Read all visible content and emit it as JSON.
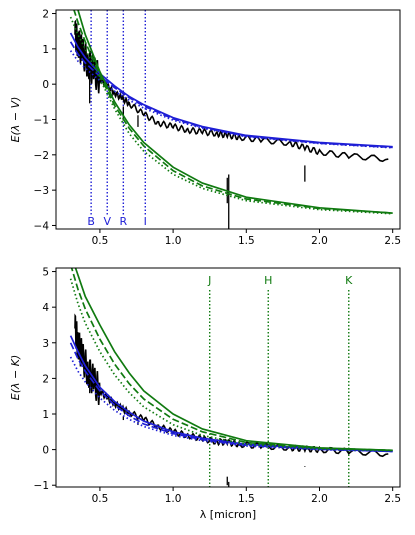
{
  "chart_data": [
    {
      "type": "line",
      "ylabel": "E(λ − V)",
      "xlabel": "",
      "xlim": [
        0.2,
        2.55
      ],
      "ylim": [
        -4.1,
        2.1
      ],
      "xticks": [
        0.5,
        1.0,
        1.5,
        2.0,
        2.5
      ],
      "xtick_labels": [
        "0.5",
        "1.0",
        "1.5",
        "2.0",
        "2.5"
      ],
      "yticks": [
        -4,
        -3,
        -2,
        -1,
        0,
        1,
        2
      ],
      "ytick_labels": [
        "−4",
        "−3",
        "−2",
        "−1",
        "0",
        "1",
        "2"
      ],
      "band_lines": [
        {
          "label": "B",
          "x": 0.44,
          "color": "#1f1fd6"
        },
        {
          "label": "V",
          "x": 0.55,
          "color": "#1f1fd6"
        },
        {
          "label": "R",
          "x": 0.66,
          "color": "#1f1fd6"
        },
        {
          "label": "I",
          "x": 0.81,
          "color": "#1f1fd6"
        }
      ],
      "series": [
        {
          "style": "black-spectrum",
          "color": "#000000",
          "x": [
            0.33,
            0.35,
            0.38,
            0.42,
            0.46,
            0.5,
            0.55,
            0.6,
            0.65,
            0.7,
            0.8,
            0.9,
            1.0,
            1.1,
            1.2,
            1.3,
            1.37,
            1.45,
            1.6,
            1.8,
            1.9,
            2.0,
            2.2,
            2.47
          ],
          "y": [
            1.4,
            1.2,
            0.9,
            0.6,
            0.35,
            0.15,
            -0.05,
            -0.25,
            -0.4,
            -0.55,
            -0.85,
            -1.1,
            -1.2,
            -1.3,
            -1.35,
            -1.4,
            -1.45,
            -1.5,
            -1.58,
            -1.67,
            -1.8,
            -1.92,
            -2.03,
            -2.12
          ]
        },
        {
          "style": "solid",
          "color": "#1f1fd6",
          "x": [
            0.3,
            0.35,
            0.4,
            0.5,
            0.6,
            0.7,
            0.8,
            1.0,
            1.2,
            1.5,
            2.0,
            2.5
          ],
          "y": [
            1.45,
            1.05,
            0.75,
            0.3,
            -0.05,
            -0.35,
            -0.58,
            -0.95,
            -1.2,
            -1.45,
            -1.65,
            -1.77
          ]
        },
        {
          "style": "dashed",
          "color": "#1f1fd6",
          "x": [
            0.3,
            0.35,
            0.4,
            0.5,
            0.6,
            0.7,
            0.8,
            1.0,
            1.2,
            1.5,
            2.0,
            2.5
          ],
          "y": [
            1.2,
            0.85,
            0.6,
            0.22,
            -0.1,
            -0.38,
            -0.62,
            -0.98,
            -1.22,
            -1.47,
            -1.67,
            -1.79
          ]
        },
        {
          "style": "dotted",
          "color": "#1f1fd6",
          "x": [
            0.3,
            0.35,
            0.4,
            0.5,
            0.6,
            0.7,
            0.8,
            1.0,
            1.2,
            1.5,
            2.0,
            2.5
          ],
          "y": [
            0.95,
            0.65,
            0.45,
            0.1,
            -0.2,
            -0.45,
            -0.68,
            -1.02,
            -1.25,
            -1.49,
            -1.68,
            -1.8
          ]
        },
        {
          "style": "solid",
          "color": "#107a10",
          "x": [
            0.3,
            0.35,
            0.4,
            0.5,
            0.6,
            0.7,
            0.8,
            1.0,
            1.2,
            1.5,
            2.0,
            2.5
          ],
          "y": [
            2.9,
            2.1,
            1.4,
            0.35,
            -0.5,
            -1.15,
            -1.65,
            -2.35,
            -2.8,
            -3.2,
            -3.5,
            -3.65
          ]
        },
        {
          "style": "dashed",
          "color": "#107a10",
          "x": [
            0.3,
            0.35,
            0.4,
            0.5,
            0.6,
            0.7,
            0.8,
            1.0,
            1.2,
            1.5,
            2.0,
            2.5
          ],
          "y": [
            2.4,
            1.75,
            1.2,
            0.25,
            -0.6,
            -1.25,
            -1.75,
            -2.45,
            -2.88,
            -3.25,
            -3.52,
            -3.65
          ]
        },
        {
          "style": "dotted",
          "color": "#107a10",
          "x": [
            0.3,
            0.35,
            0.4,
            0.5,
            0.6,
            0.7,
            0.8,
            1.0,
            1.2,
            1.5,
            2.0,
            2.5
          ],
          "y": [
            1.9,
            1.4,
            1.0,
            0.15,
            -0.7,
            -1.4,
            -1.9,
            -2.55,
            -2.95,
            -3.3,
            -3.55,
            -3.67
          ]
        }
      ]
    },
    {
      "type": "line",
      "ylabel": "E(λ − K)",
      "xlabel": "λ [micron]",
      "xlim": [
        0.2,
        2.55
      ],
      "ylim": [
        -1.05,
        5.1
      ],
      "xticks": [
        0.5,
        1.0,
        1.5,
        2.0,
        2.5
      ],
      "xtick_labels": [
        "0.5",
        "1.0",
        "1.5",
        "2.0",
        "2.5"
      ],
      "yticks": [
        -1,
        0,
        1,
        2,
        3,
        4,
        5
      ],
      "ytick_labels": [
        "−1",
        "0",
        "1",
        "2",
        "3",
        "4",
        "5"
      ],
      "band_lines": [
        {
          "label": "J",
          "x": 1.25,
          "color": "#107a10"
        },
        {
          "label": "H",
          "x": 1.65,
          "color": "#107a10"
        },
        {
          "label": "K",
          "x": 2.2,
          "color": "#107a10"
        }
      ],
      "series": [
        {
          "style": "black-spectrum",
          "color": "#000000",
          "x": [
            0.33,
            0.35,
            0.38,
            0.42,
            0.46,
            0.5,
            0.55,
            0.6,
            0.65,
            0.7,
            0.8,
            0.9,
            1.0,
            1.1,
            1.2,
            1.3,
            1.37,
            1.45,
            1.6,
            1.8,
            1.9,
            2.0,
            2.2,
            2.47
          ],
          "y": [
            3.4,
            3.0,
            2.6,
            2.2,
            1.9,
            1.65,
            1.45,
            1.3,
            1.15,
            1.05,
            0.85,
            0.65,
            0.5,
            0.4,
            0.3,
            0.22,
            0.2,
            0.15,
            0.1,
            0.05,
            0.02,
            0.0,
            -0.05,
            -0.12
          ]
        },
        {
          "style": "solid",
          "color": "#1f1fd6",
          "x": [
            0.3,
            0.35,
            0.4,
            0.5,
            0.6,
            0.7,
            0.8,
            1.0,
            1.2,
            1.5,
            2.0,
            2.5
          ],
          "y": [
            3.2,
            2.75,
            2.35,
            1.75,
            1.35,
            1.05,
            0.8,
            0.5,
            0.32,
            0.15,
            0.02,
            -0.05
          ]
        },
        {
          "style": "dashed",
          "color": "#1f1fd6",
          "x": [
            0.3,
            0.35,
            0.4,
            0.5,
            0.6,
            0.7,
            0.8,
            1.0,
            1.2,
            1.5,
            2.0,
            2.5
          ],
          "y": [
            3.0,
            2.55,
            2.2,
            1.65,
            1.25,
            0.95,
            0.72,
            0.45,
            0.28,
            0.12,
            0.01,
            -0.05
          ]
        },
        {
          "style": "dotted",
          "color": "#1f1fd6",
          "x": [
            0.3,
            0.35,
            0.4,
            0.5,
            0.6,
            0.7,
            0.8,
            1.0,
            1.2,
            1.5,
            2.0,
            2.5
          ],
          "y": [
            2.6,
            2.2,
            1.9,
            1.45,
            1.1,
            0.85,
            0.65,
            0.4,
            0.25,
            0.1,
            0.0,
            -0.05
          ]
        },
        {
          "style": "solid",
          "color": "#107a10",
          "x": [
            0.3,
            0.35,
            0.4,
            0.5,
            0.6,
            0.7,
            0.8,
            1.0,
            1.2,
            1.5,
            2.0,
            2.5
          ],
          "y": [
            5.5,
            4.9,
            4.3,
            3.5,
            2.75,
            2.15,
            1.65,
            1.0,
            0.58,
            0.25,
            0.05,
            -0.02
          ]
        },
        {
          "style": "dashed",
          "color": "#107a10",
          "x": [
            0.3,
            0.35,
            0.4,
            0.5,
            0.6,
            0.7,
            0.8,
            1.0,
            1.2,
            1.5,
            2.0,
            2.5
          ],
          "y": [
            5.2,
            4.5,
            3.95,
            3.1,
            2.4,
            1.85,
            1.42,
            0.85,
            0.5,
            0.2,
            0.04,
            -0.02
          ]
        },
        {
          "style": "dotted",
          "color": "#107a10",
          "x": [
            0.3,
            0.35,
            0.4,
            0.5,
            0.6,
            0.7,
            0.8,
            1.0,
            1.2,
            1.5,
            2.0,
            2.5
          ],
          "y": [
            4.8,
            4.1,
            3.55,
            2.75,
            2.1,
            1.6,
            1.2,
            0.7,
            0.4,
            0.15,
            0.02,
            -0.03
          ]
        }
      ]
    }
  ]
}
